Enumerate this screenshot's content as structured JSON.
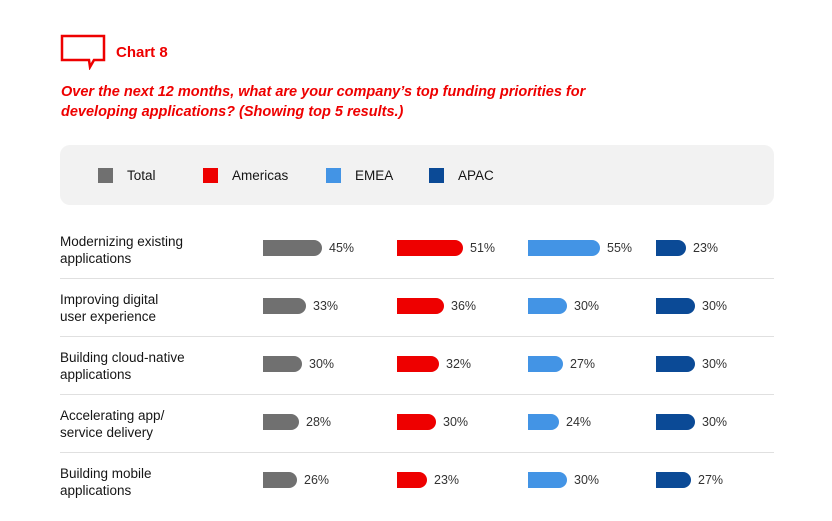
{
  "header": {
    "chart_label": "Chart 8"
  },
  "colors": {
    "brand_red": "#ee0000",
    "total": "#707070",
    "americas": "#ee0000",
    "emea": "#4394e5",
    "apac": "#0b4a96",
    "legend_bg": "#f2f2f2"
  },
  "icons": {
    "header_icon": "speech-bubble-icon"
  },
  "chart_data": {
    "type": "bar",
    "title": "Over the next 12 months, what are your company’s top funding priorities for developing applications? (Showing top 5 results.)",
    "categories": [
      "Modernizing existing applications",
      "Improving digital user experience",
      "Building cloud-native applications",
      "Accelerating app/ service delivery",
      "Building mobile applications"
    ],
    "category_lines": [
      [
        "Modernizing existing",
        "applications"
      ],
      [
        "Improving digital",
        "user experience"
      ],
      [
        "Building cloud-native",
        "applications"
      ],
      [
        "Accelerating app/",
        "service delivery"
      ],
      [
        "Building mobile",
        "applications"
      ]
    ],
    "series": [
      {
        "name": "Total",
        "color": "#707070",
        "values": [
          45,
          33,
          30,
          28,
          26
        ]
      },
      {
        "name": "Americas",
        "color": "#ee0000",
        "values": [
          51,
          36,
          32,
          30,
          23
        ]
      },
      {
        "name": "EMEA",
        "color": "#4394e5",
        "values": [
          55,
          30,
          27,
          24,
          30
        ]
      },
      {
        "name": "APAC",
        "color": "#0b4a96",
        "values": [
          23,
          30,
          30,
          30,
          27
        ]
      }
    ],
    "value_suffix": "%",
    "legend_position": "top",
    "grid": false
  }
}
